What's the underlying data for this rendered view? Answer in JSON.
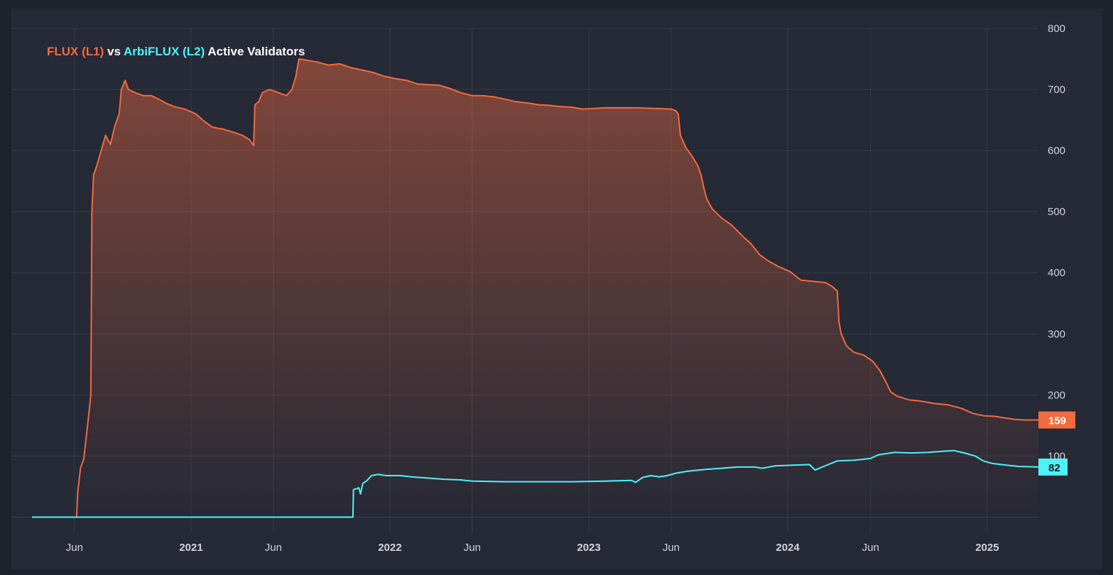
{
  "title": {
    "series1": "FLUX (L1)",
    "connector": "vs",
    "series2": "ArbiFLUX (L2)",
    "suffix": "Active Validators"
  },
  "colors": {
    "background": "#262936",
    "outer": "#1e222d",
    "grid": "#363a47",
    "flux": "#f26b3f",
    "arbi": "#4ef3f8",
    "axis_text": "#d1d4dc"
  },
  "chart_data": {
    "type": "area",
    "x_axis": {
      "type": "date",
      "range": [
        "2020-03-15",
        "2025-04-05"
      ],
      "tick_labels": [
        {
          "date": "2020-06-01",
          "label": "Jun",
          "bold": false
        },
        {
          "date": "2021-01-01",
          "label": "2021",
          "bold": true
        },
        {
          "date": "2021-06-01",
          "label": "Jun",
          "bold": false
        },
        {
          "date": "2022-01-01",
          "label": "2022",
          "bold": true
        },
        {
          "date": "2022-06-01",
          "label": "Jun",
          "bold": false
        },
        {
          "date": "2023-01-01",
          "label": "2023",
          "bold": true
        },
        {
          "date": "2023-06-01",
          "label": "Jun",
          "bold": false
        },
        {
          "date": "2024-01-01",
          "label": "2024",
          "bold": true
        },
        {
          "date": "2024-06-01",
          "label": "Jun",
          "bold": false
        },
        {
          "date": "2025-01-01",
          "label": "2025",
          "bold": true
        }
      ]
    },
    "y_axis": {
      "range": [
        -25,
        800
      ],
      "ticks": [
        100,
        200,
        300,
        400,
        500,
        600,
        700,
        800
      ],
      "side": "right"
    },
    "grid": true,
    "series": [
      {
        "name": "FLUX (L1)",
        "color": "#f26b3f",
        "fill": "gradient",
        "last_value": "159",
        "points": [
          [
            "2020-03-15",
            0
          ],
          [
            "2020-06-05",
            0
          ],
          [
            "2020-06-07",
            40
          ],
          [
            "2020-06-12",
            80
          ],
          [
            "2020-06-18",
            95
          ],
          [
            "2020-06-25",
            150
          ],
          [
            "2020-07-01",
            200
          ],
          [
            "2020-07-03",
            500
          ],
          [
            "2020-07-06",
            560
          ],
          [
            "2020-07-12",
            575
          ],
          [
            "2020-07-20",
            600
          ],
          [
            "2020-07-28",
            625
          ],
          [
            "2020-08-06",
            610
          ],
          [
            "2020-08-14",
            640
          ],
          [
            "2020-08-22",
            660
          ],
          [
            "2020-08-26",
            700
          ],
          [
            "2020-09-02",
            715
          ],
          [
            "2020-09-08",
            700
          ],
          [
            "2020-09-20",
            695
          ],
          [
            "2020-10-05",
            690
          ],
          [
            "2020-10-20",
            690
          ],
          [
            "2020-11-01",
            685
          ],
          [
            "2020-11-15",
            678
          ],
          [
            "2020-12-01",
            672
          ],
          [
            "2020-12-20",
            668
          ],
          [
            "2021-01-10",
            660
          ],
          [
            "2021-01-25",
            648
          ],
          [
            "2021-02-10",
            638
          ],
          [
            "2021-03-01",
            635
          ],
          [
            "2021-03-20",
            630
          ],
          [
            "2021-04-05",
            625
          ],
          [
            "2021-04-18",
            618
          ],
          [
            "2021-04-26",
            608
          ],
          [
            "2021-04-28",
            675
          ],
          [
            "2021-05-05",
            680
          ],
          [
            "2021-05-12",
            695
          ],
          [
            "2021-05-25",
            700
          ],
          [
            "2021-06-10",
            695
          ],
          [
            "2021-06-25",
            690
          ],
          [
            "2021-07-05",
            700
          ],
          [
            "2021-07-12",
            720
          ],
          [
            "2021-07-18",
            750
          ],
          [
            "2021-08-01",
            748
          ],
          [
            "2021-08-20",
            745
          ],
          [
            "2021-09-10",
            740
          ],
          [
            "2021-10-01",
            742
          ],
          [
            "2021-10-20",
            736
          ],
          [
            "2021-11-10",
            732
          ],
          [
            "2021-12-01",
            728
          ],
          [
            "2021-12-20",
            722
          ],
          [
            "2022-01-10",
            718
          ],
          [
            "2022-02-01",
            715
          ],
          [
            "2022-02-20",
            709
          ],
          [
            "2022-03-10",
            708
          ],
          [
            "2022-04-01",
            707
          ],
          [
            "2022-04-20",
            702
          ],
          [
            "2022-05-10",
            695
          ],
          [
            "2022-06-01",
            690
          ],
          [
            "2022-06-20",
            690
          ],
          [
            "2022-07-10",
            688
          ],
          [
            "2022-08-01",
            684
          ],
          [
            "2022-08-20",
            680
          ],
          [
            "2022-09-10",
            678
          ],
          [
            "2022-10-01",
            675
          ],
          [
            "2022-10-20",
            674
          ],
          [
            "2022-11-10",
            672
          ],
          [
            "2022-12-01",
            671
          ],
          [
            "2022-12-20",
            668
          ],
          [
            "2023-01-10",
            669
          ],
          [
            "2023-02-01",
            670
          ],
          [
            "2023-03-01",
            670
          ],
          [
            "2023-04-01",
            670
          ],
          [
            "2023-05-01",
            669
          ],
          [
            "2023-06-01",
            668
          ],
          [
            "2023-06-10",
            665
          ],
          [
            "2023-06-14",
            660
          ],
          [
            "2023-06-18",
            625
          ],
          [
            "2023-06-28",
            605
          ],
          [
            "2023-07-10",
            590
          ],
          [
            "2023-07-20",
            575
          ],
          [
            "2023-07-26",
            560
          ],
          [
            "2023-08-01",
            535
          ],
          [
            "2023-08-06",
            520
          ],
          [
            "2023-08-15",
            505
          ],
          [
            "2023-09-01",
            490
          ],
          [
            "2023-09-20",
            478
          ],
          [
            "2023-10-10",
            460
          ],
          [
            "2023-10-25",
            448
          ],
          [
            "2023-11-10",
            430
          ],
          [
            "2023-11-25",
            420
          ],
          [
            "2023-12-15",
            410
          ],
          [
            "2024-01-05",
            402
          ],
          [
            "2024-01-25",
            388
          ],
          [
            "2024-02-15",
            386
          ],
          [
            "2024-03-10",
            384
          ],
          [
            "2024-03-22",
            378
          ],
          [
            "2024-04-01",
            370
          ],
          [
            "2024-04-04",
            320
          ],
          [
            "2024-04-08",
            300
          ],
          [
            "2024-04-18",
            280
          ],
          [
            "2024-05-01",
            270
          ],
          [
            "2024-05-20",
            265
          ],
          [
            "2024-06-05",
            255
          ],
          [
            "2024-06-18",
            240
          ],
          [
            "2024-07-01",
            218
          ],
          [
            "2024-07-08",
            205
          ],
          [
            "2024-07-20",
            198
          ],
          [
            "2024-08-10",
            192
          ],
          [
            "2024-09-01",
            190
          ],
          [
            "2024-09-25",
            186
          ],
          [
            "2024-10-20",
            184
          ],
          [
            "2024-11-15",
            178
          ],
          [
            "2024-12-05",
            170
          ],
          [
            "2024-12-25",
            166
          ],
          [
            "2025-01-15",
            165
          ],
          [
            "2025-02-05",
            162
          ],
          [
            "2025-02-20",
            160
          ],
          [
            "2025-03-10",
            159
          ],
          [
            "2025-04-05",
            159
          ]
        ]
      },
      {
        "name": "ArbiFLUX (L2)",
        "color": "#4ef3f8",
        "fill": "none",
        "last_value": "82",
        "points": [
          [
            "2020-03-15",
            0
          ],
          [
            "2021-10-25",
            0
          ],
          [
            "2021-10-26",
            45
          ],
          [
            "2021-11-05",
            48
          ],
          [
            "2021-11-08",
            38
          ],
          [
            "2021-11-12",
            55
          ],
          [
            "2021-11-20",
            60
          ],
          [
            "2021-11-28",
            68
          ],
          [
            "2021-12-10",
            70
          ],
          [
            "2021-12-25",
            68
          ],
          [
            "2022-01-20",
            68
          ],
          [
            "2022-02-10",
            66
          ],
          [
            "2022-03-10",
            64
          ],
          [
            "2022-04-10",
            62
          ],
          [
            "2022-05-10",
            61
          ],
          [
            "2022-06-01",
            59
          ],
          [
            "2022-08-01",
            58
          ],
          [
            "2022-10-01",
            58
          ],
          [
            "2022-12-01",
            58
          ],
          [
            "2023-02-01",
            59
          ],
          [
            "2023-03-20",
            60
          ],
          [
            "2023-03-28",
            57
          ],
          [
            "2023-04-10",
            65
          ],
          [
            "2023-04-25",
            68
          ],
          [
            "2023-05-10",
            66
          ],
          [
            "2023-05-25",
            68
          ],
          [
            "2023-06-10",
            72
          ],
          [
            "2023-07-01",
            75
          ],
          [
            "2023-08-01",
            78
          ],
          [
            "2023-09-01",
            80
          ],
          [
            "2023-10-01",
            82
          ],
          [
            "2023-11-01",
            82
          ],
          [
            "2023-11-15",
            80
          ],
          [
            "2023-12-10",
            84
          ],
          [
            "2024-01-10",
            85
          ],
          [
            "2024-02-10",
            86
          ],
          [
            "2024-02-20",
            77
          ],
          [
            "2024-02-28",
            80
          ],
          [
            "2024-03-15",
            86
          ],
          [
            "2024-04-01",
            92
          ],
          [
            "2024-05-01",
            93
          ],
          [
            "2024-06-01",
            96
          ],
          [
            "2024-06-15",
            102
          ],
          [
            "2024-07-15",
            106
          ],
          [
            "2024-08-15",
            105
          ],
          [
            "2024-09-15",
            106
          ],
          [
            "2024-10-15",
            108
          ],
          [
            "2024-11-01",
            109
          ],
          [
            "2024-11-20",
            105
          ],
          [
            "2024-12-10",
            100
          ],
          [
            "2024-12-25",
            92
          ],
          [
            "2025-01-10",
            88
          ],
          [
            "2025-02-05",
            85
          ],
          [
            "2025-03-01",
            83
          ],
          [
            "2025-04-05",
            82
          ]
        ]
      }
    ]
  }
}
